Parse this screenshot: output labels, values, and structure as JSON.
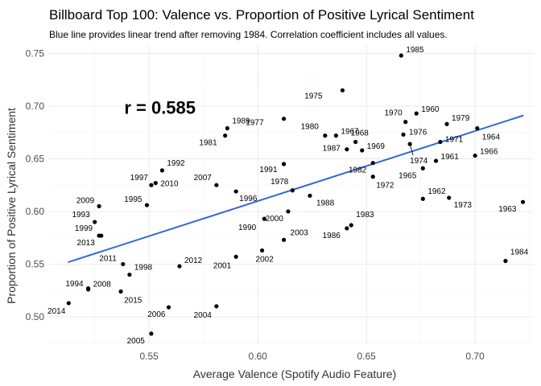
{
  "chart_data": {
    "type": "scatter",
    "title": "Billboard Top 100: Valence vs. Proportion of Positive Lyrical Sentiment",
    "subtitle": "Blue line provides linear trend after removing 1984. Correlation coefficient includes all values.",
    "xlabel": "Average Valence (Spotify Audio Feature)",
    "ylabel": "Proportion of Positive Lyrical Sentiment",
    "xlim": [
      0.504,
      0.727
    ],
    "ylim": [
      0.474,
      0.758
    ],
    "xticks": [
      0.55,
      0.6,
      0.65,
      0.7
    ],
    "xtick_labels": [
      "0.55",
      "0.60",
      "0.65",
      "0.70"
    ],
    "yticks": [
      0.5,
      0.55,
      0.6,
      0.65,
      0.7,
      0.75
    ],
    "ytick_labels": [
      "0.50",
      "0.55",
      "0.60",
      "0.65",
      "0.70",
      "0.75"
    ],
    "grid": true,
    "annotation": {
      "text": "r =  0.585",
      "x": 0.555,
      "y": 0.699
    },
    "trend": {
      "x": [
        0.513,
        0.722
      ],
      "y": [
        0.552,
        0.691
      ],
      "color": "#3366dd"
    },
    "point_color": "#000000",
    "points": [
      {
        "year": "1960",
        "x": 0.673,
        "y": 0.693
      },
      {
        "year": "1961",
        "x": 0.682,
        "y": 0.648
      },
      {
        "year": "1962",
        "x": 0.676,
        "y": 0.612
      },
      {
        "year": "1963",
        "x": 0.722,
        "y": 0.609
      },
      {
        "year": "1964",
        "x": 0.701,
        "y": 0.679
      },
      {
        "year": "1965",
        "x": 0.676,
        "y": 0.641
      },
      {
        "year": "1966",
        "x": 0.7,
        "y": 0.653
      },
      {
        "year": "1967",
        "x": 0.636,
        "y": 0.672
      },
      {
        "year": "1968",
        "x": 0.645,
        "y": 0.666
      },
      {
        "year": "1969",
        "x": 0.648,
        "y": 0.658
      },
      {
        "year": "1970",
        "x": 0.668,
        "y": 0.685
      },
      {
        "year": "1971",
        "x": 0.684,
        "y": 0.666
      },
      {
        "year": "1972",
        "x": 0.653,
        "y": 0.633
      },
      {
        "year": "1973",
        "x": 0.688,
        "y": 0.613
      },
      {
        "year": "1974",
        "x": 0.67,
        "y": 0.664
      },
      {
        "year": "1975",
        "x": 0.639,
        "y": 0.715
      },
      {
        "year": "1976",
        "x": 0.667,
        "y": 0.673
      },
      {
        "year": "1977",
        "x": 0.612,
        "y": 0.688
      },
      {
        "year": "1978",
        "x": 0.616,
        "y": 0.62
      },
      {
        "year": "1979",
        "x": 0.687,
        "y": 0.683
      },
      {
        "year": "1980",
        "x": 0.631,
        "y": 0.672
      },
      {
        "year": "1981",
        "x": 0.585,
        "y": 0.672
      },
      {
        "year": "1982",
        "x": 0.653,
        "y": 0.646
      },
      {
        "year": "1983",
        "x": 0.643,
        "y": 0.587
      },
      {
        "year": "1984",
        "x": 0.714,
        "y": 0.553
      },
      {
        "year": "1985",
        "x": 0.666,
        "y": 0.748
      },
      {
        "year": "1986",
        "x": 0.641,
        "y": 0.584
      },
      {
        "year": "1987",
        "x": 0.641,
        "y": 0.659
      },
      {
        "year": "1988",
        "x": 0.624,
        "y": 0.615
      },
      {
        "year": "1989",
        "x": 0.586,
        "y": 0.679
      },
      {
        "year": "1990",
        "x": 0.603,
        "y": 0.593
      },
      {
        "year": "1991",
        "x": 0.612,
        "y": 0.645
      },
      {
        "year": "1992",
        "x": 0.556,
        "y": 0.639
      },
      {
        "year": "1993",
        "x": 0.525,
        "y": 0.59
      },
      {
        "year": "1994",
        "x": 0.522,
        "y": 0.526
      },
      {
        "year": "1995",
        "x": 0.549,
        "y": 0.606
      },
      {
        "year": "1996",
        "x": 0.59,
        "y": 0.619
      },
      {
        "year": "1997",
        "x": 0.551,
        "y": 0.625
      },
      {
        "year": "1998",
        "x": 0.541,
        "y": 0.54
      },
      {
        "year": "1999",
        "x": 0.527,
        "y": 0.577
      },
      {
        "year": "2000",
        "x": 0.614,
        "y": 0.6
      },
      {
        "year": "2001",
        "x": 0.59,
        "y": 0.557
      },
      {
        "year": "2002",
        "x": 0.602,
        "y": 0.563
      },
      {
        "year": "2003",
        "x": 0.612,
        "y": 0.573
      },
      {
        "year": "2004",
        "x": 0.581,
        "y": 0.51
      },
      {
        "year": "2005",
        "x": 0.551,
        "y": 0.484
      },
      {
        "year": "2006",
        "x": 0.559,
        "y": 0.509
      },
      {
        "year": "2007",
        "x": 0.581,
        "y": 0.625
      },
      {
        "year": "2008",
        "x": 0.522,
        "y": 0.527
      },
      {
        "year": "2009",
        "x": 0.527,
        "y": 0.605
      },
      {
        "year": "2010",
        "x": 0.553,
        "y": 0.627
      },
      {
        "year": "2011",
        "x": 0.538,
        "y": 0.55
      },
      {
        "year": "2012",
        "x": 0.564,
        "y": 0.548
      },
      {
        "year": "2013",
        "x": 0.528,
        "y": 0.577
      },
      {
        "year": "2014",
        "x": 0.513,
        "y": 0.513
      },
      {
        "year": "2015",
        "x": 0.537,
        "y": 0.524
      }
    ]
  }
}
